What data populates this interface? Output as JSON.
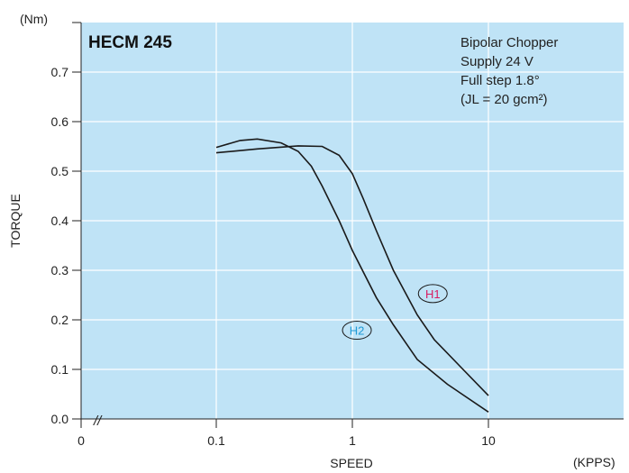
{
  "chart_data": {
    "type": "line",
    "title": "HECM 245",
    "annotations": [
      "Bipolar Chopper",
      "Supply 24 V",
      "Full step 1.8°",
      "(JL = 20 gcm²)"
    ],
    "xlabel": "SPEED",
    "x_unit": "(KPPS)",
    "ylabel": "TORQUE",
    "y_unit": "(Nm)",
    "x_scale": "log",
    "xlim": [
      0.1,
      20
    ],
    "ylim": [
      0,
      0.8
    ],
    "x_ticks": [
      "0",
      "0.1",
      "1",
      "10"
    ],
    "y_ticks": [
      "0.0",
      "0.1",
      "0.2",
      "0.3",
      "0.4",
      "0.5",
      "0.6",
      "0.7"
    ],
    "axis_break_mark": "//",
    "grid": true,
    "colors": {
      "plot_background": "#bfe3f6",
      "grid": "#ffffff",
      "curve": "#1a1a1a",
      "h1_label": "#d81b60",
      "h2_label": "#1e9ad6"
    },
    "series": [
      {
        "name": "H1",
        "x": [
          0.1,
          0.2,
          0.4,
          0.6,
          0.8,
          1.0,
          1.2,
          1.5,
          2.0,
          3.0,
          4.0,
          6.0,
          10.0
        ],
        "y": [
          0.537,
          0.545,
          0.551,
          0.55,
          0.532,
          0.495,
          0.445,
          0.38,
          0.3,
          0.21,
          0.16,
          0.11,
          0.047
        ]
      },
      {
        "name": "H2",
        "x": [
          0.1,
          0.15,
          0.2,
          0.3,
          0.4,
          0.5,
          0.6,
          0.8,
          1.0,
          1.5,
          2.0,
          3.0,
          5.0,
          10.0
        ],
        "y": [
          0.548,
          0.562,
          0.565,
          0.557,
          0.54,
          0.51,
          0.47,
          0.4,
          0.34,
          0.245,
          0.19,
          0.12,
          0.07,
          0.014
        ]
      }
    ]
  }
}
